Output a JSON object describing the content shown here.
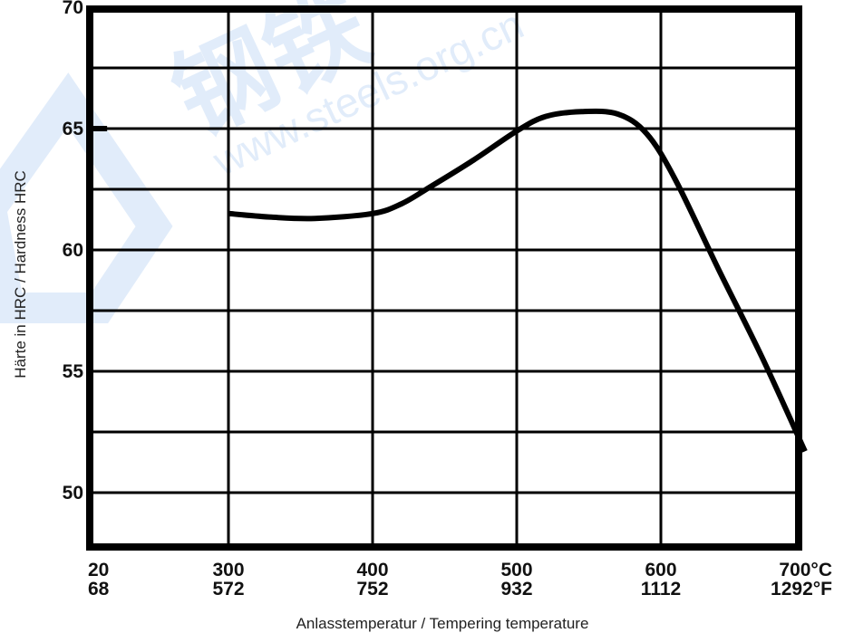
{
  "watermark": {
    "cn_text": "钢铁",
    "url_text": "www.steels.org.cn",
    "color": "#1a6fd6"
  },
  "chart_data": {
    "type": "line",
    "xlabel": "Anlasstemperatur / Tempering temperature",
    "ylabel": "Härte in HRC / Hardness HRC",
    "xlim": [
      20,
      700
    ],
    "ylim": [
      47.5,
      70
    ],
    "grid": true,
    "y_ticks": [
      50,
      55,
      60,
      65,
      70
    ],
    "x_ticks": [
      {
        "c": 20,
        "c_label": "20",
        "f_label": "68"
      },
      {
        "c": 300,
        "c_label": "300",
        "f_label": "572"
      },
      {
        "c": 400,
        "c_label": "400",
        "f_label": "752"
      },
      {
        "c": 500,
        "c_label": "500",
        "f_label": "932"
      },
      {
        "c": 600,
        "c_label": "600",
        "f_label": "1112"
      },
      {
        "c": 700,
        "c_label": "700°C",
        "f_label": "1292°F"
      }
    ],
    "as_quenched": {
      "x": [
        20,
        55
      ],
      "y": [
        65,
        65
      ]
    },
    "series": [
      {
        "x": [
          300,
          330,
          360,
          400,
          420,
          440,
          470,
          500,
          520,
          545,
          570,
          590,
          610,
          640,
          670,
          700
        ],
        "y": [
          61.5,
          61.35,
          61.3,
          61.5,
          61.9,
          62.6,
          63.7,
          64.9,
          65.5,
          65.7,
          65.6,
          64.8,
          62.9,
          59.2,
          55.6,
          51.7
        ]
      }
    ],
    "colors": {
      "line": "#000000",
      "grid": "#000000",
      "frame": "#000000"
    }
  }
}
